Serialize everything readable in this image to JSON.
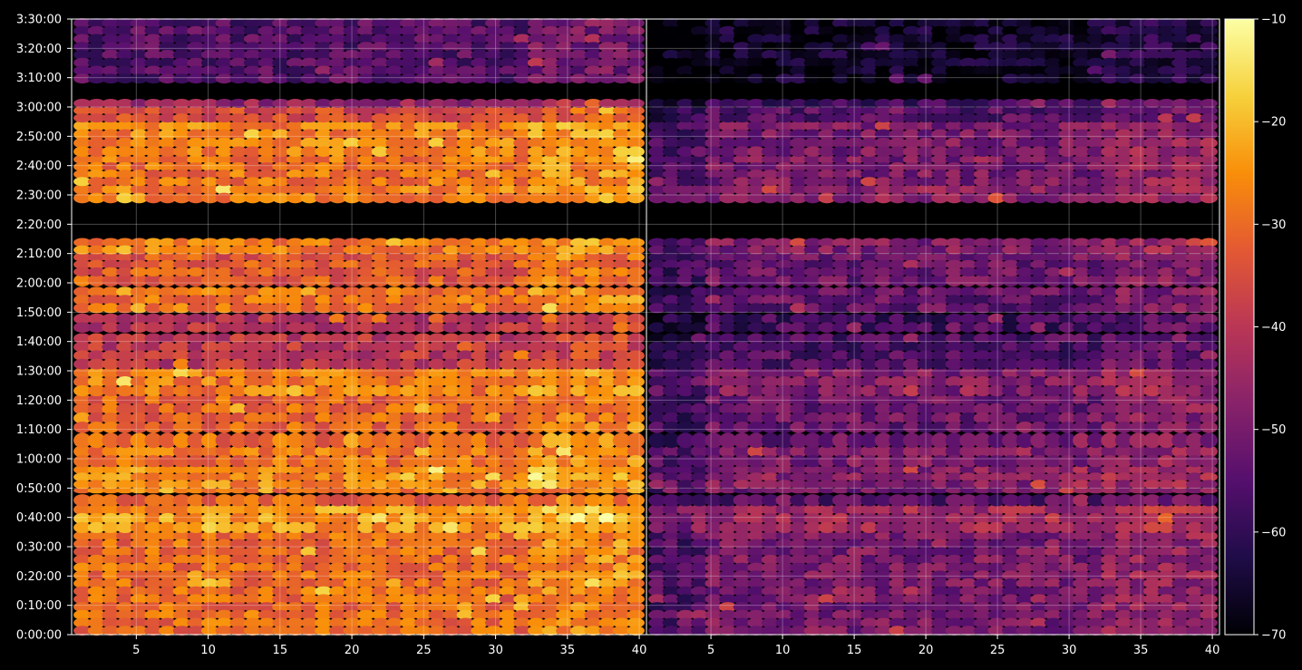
{
  "chart_data": {
    "type": "heatmap",
    "title": "",
    "xlabel": "",
    "ylabel": "",
    "grid": true,
    "panels": [
      {
        "name": "",
        "x_range": [
          1,
          40
        ],
        "x_ticks": [
          5,
          10,
          15,
          20,
          25,
          30,
          35,
          40
        ],
        "x_tick_labels": [
          "5",
          "10",
          "15",
          "20",
          "25",
          "30",
          "35",
          "40"
        ]
      },
      {
        "name": "",
        "x_range": [
          1,
          40
        ],
        "x_ticks": [
          5,
          10,
          15,
          20,
          25,
          30,
          35,
          40
        ],
        "x_tick_labels": [
          "5",
          "10",
          "15",
          "20",
          "25",
          "30",
          "35",
          "40"
        ]
      }
    ],
    "y_axis": {
      "unit": "seconds",
      "range": [
        0,
        12600
      ],
      "ticks": [
        0,
        600,
        1200,
        1800,
        2400,
        3000,
        3600,
        4200,
        4800,
        5400,
        6000,
        6600,
        7200,
        7800,
        8400,
        9000,
        9600,
        10200,
        10800,
        11400,
        12000,
        12600
      ],
      "tick_labels": [
        "0:00:00",
        "0:10:00",
        "0:20:00",
        "0:30:00",
        "0:40:00",
        "0:50:00",
        "1:00:00",
        "1:10:00",
        "1:20:00",
        "1:30:00",
        "1:40:00",
        "1:50:00",
        "2:00:00",
        "2:10:00",
        "2:20:00",
        "2:30:00",
        "2:40:00",
        "2:50:00",
        "3:00:00",
        "3:10:00",
        "3:20:00",
        "3:30:00"
      ]
    },
    "colorbar": {
      "colormap": "inferno",
      "range": [
        -70,
        -10
      ],
      "ticks": [
        -70,
        -60,
        -50,
        -40,
        -30,
        -20,
        -10
      ],
      "tick_labels": [
        "−70",
        "−60",
        "−50",
        "−40",
        "−30",
        "−20",
        "−10"
      ]
    },
    "segments": [
      {
        "y": [
          0,
          2100
        ],
        "levels": [
          -30,
          -50
        ]
      },
      {
        "y": [
          2100,
          2650
        ],
        "levels": [
          -24,
          -44
        ]
      },
      {
        "y": [
          2650,
          2850
        ],
        "levels": [
          -32,
          -55
        ]
      },
      {
        "y": [
          2900,
          3000
        ],
        "levels": [
          -30,
          -50
        ]
      },
      {
        "y": [
          3000,
          3450
        ],
        "levels": [
          -26,
          -48
        ]
      },
      {
        "y": [
          3450,
          3850
        ],
        "levels": [
          -29,
          -50
        ]
      },
      {
        "y": [
          3850,
          4100
        ],
        "levels": [
          -30,
          -52
        ]
      },
      {
        "y": [
          4150,
          4900
        ],
        "levels": [
          -31,
          -52
        ]
      },
      {
        "y": [
          4900,
          5450
        ],
        "levels": [
          -28,
          -49
        ]
      },
      {
        "y": [
          5450,
          6150
        ],
        "levels": [
          -40,
          -56
        ]
      },
      {
        "y": [
          6200,
          6550
        ],
        "levels": [
          -41,
          -58
        ]
      },
      {
        "y": [
          6600,
          7100
        ],
        "levels": [
          -29,
          -53
        ]
      },
      {
        "y": [
          7150,
          7350
        ],
        "levels": [
          -33,
          -52
        ]
      },
      {
        "y": [
          7350,
          7800
        ],
        "levels": [
          -33,
          -52
        ]
      },
      {
        "y": [
          7800,
          8100
        ],
        "levels": [
          -28,
          -49
        ]
      },
      {
        "y": [
          8850,
          9200
        ],
        "levels": [
          -27,
          -47
        ]
      },
      {
        "y": [
          9200,
          9800
        ],
        "levels": [
          -29,
          -50
        ]
      },
      {
        "y": [
          9800,
          10500
        ],
        "levels": [
          -27,
          -50
        ]
      },
      {
        "y": [
          10500,
          10800
        ],
        "levels": [
          -36,
          -55
        ]
      },
      {
        "y": [
          10800,
          10950
        ],
        "levels": [
          -46,
          -58
        ]
      },
      {
        "y": [
          11300,
          12600
        ],
        "levels": [
          -55,
          -66
        ]
      }
    ]
  }
}
